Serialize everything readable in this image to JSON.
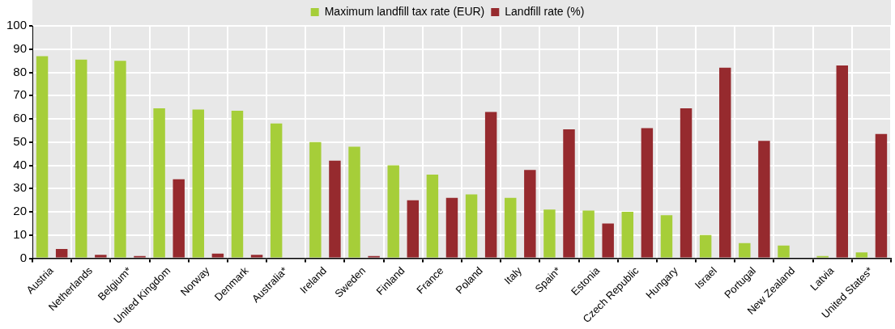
{
  "chart_data": {
    "type": "bar",
    "categories": [
      "Austria",
      "Netherlands",
      "Belgium*",
      "United Kingdom",
      "Norway",
      "Denmark",
      "Australia*",
      "Ireland",
      "Sweden",
      "Finland",
      "France",
      "Poland",
      "Italy",
      "Spain*",
      "Estonia",
      "Czech Republic",
      "Hungary",
      "Israel",
      "Portugal",
      "New Zealand",
      "Latvia",
      "United States*"
    ],
    "series": [
      {
        "name": "Maximum landfill tax rate (EUR)",
        "color": "#a6ce39",
        "values": [
          87,
          85.5,
          85,
          64.5,
          64,
          63.5,
          58,
          50,
          48,
          40,
          36,
          27.5,
          26,
          21,
          20.5,
          20,
          18.5,
          10,
          6.5,
          5.5,
          1,
          2.5
        ]
      },
      {
        "name": "Landfill rate (%)",
        "color": "#962a2e",
        "values": [
          4,
          1.5,
          1,
          34,
          2,
          1.5,
          null,
          42,
          1,
          25,
          26,
          63,
          38,
          55.5,
          15,
          56,
          64.5,
          82,
          50.5,
          null,
          83,
          53.5
        ]
      }
    ],
    "ylim": [
      0,
      100
    ],
    "yticks": [
      0,
      10,
      20,
      30,
      40,
      50,
      60,
      70,
      80,
      90,
      100
    ],
    "grid": true,
    "legend": "top"
  }
}
